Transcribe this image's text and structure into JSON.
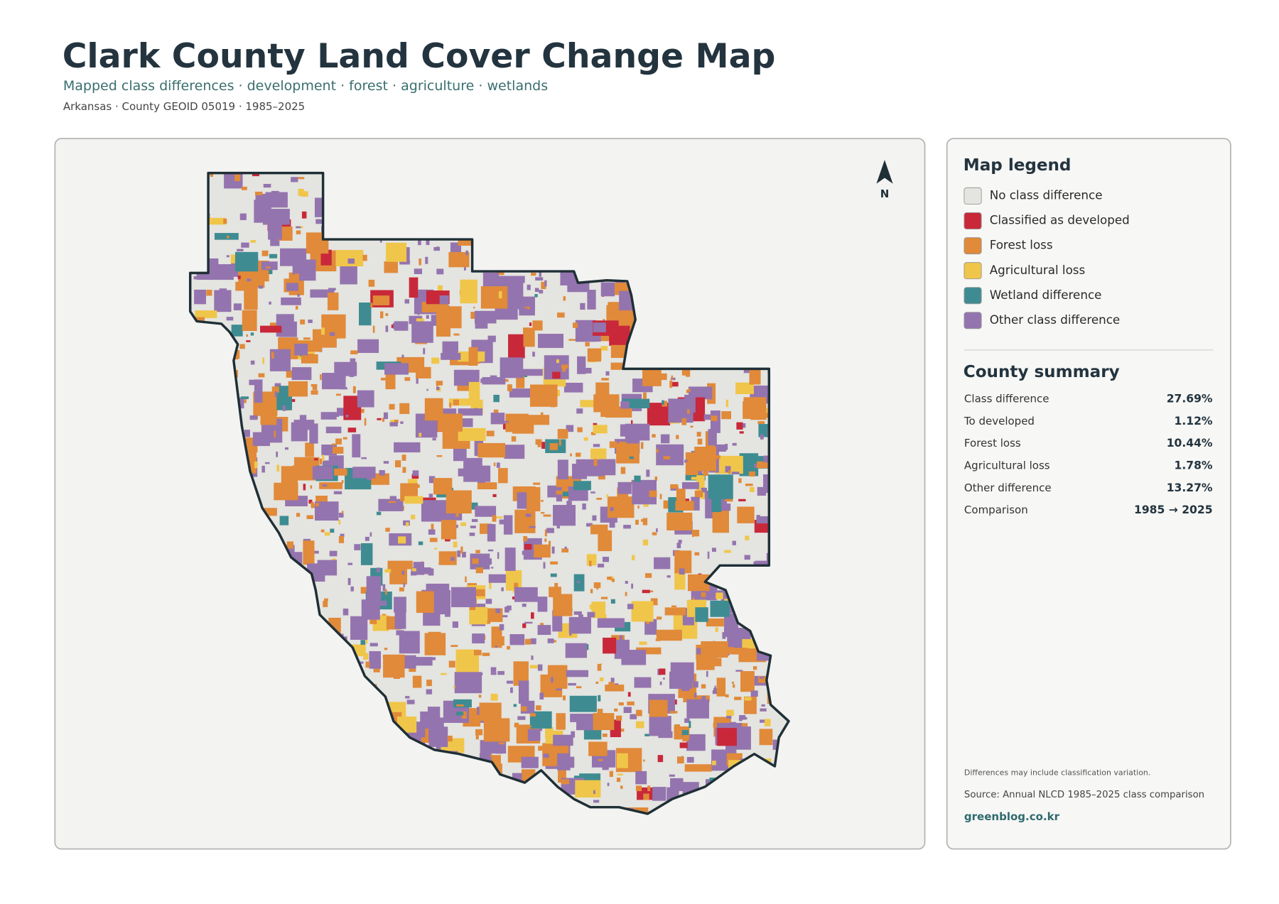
{
  "header": {
    "title": "Clark County Land Cover Change Map",
    "subtitle": "Mapped class differences · development · forest · agriculture · wetlands",
    "meta": "Arkansas · County GEOID 05019 · 1985–2025"
  },
  "map": {
    "north_label": "N"
  },
  "legend": {
    "title": "Map legend",
    "items": [
      {
        "label": "No class difference",
        "color": "#e4e4e0"
      },
      {
        "label": "Classified as developed",
        "color": "#c8283a"
      },
      {
        "label": "Forest loss",
        "color": "#e08a3a"
      },
      {
        "label": "Agricultural loss",
        "color": "#f0c64a"
      },
      {
        "label": "Wetland difference",
        "color": "#3e8c91"
      },
      {
        "label": "Other class difference",
        "color": "#9474ae"
      }
    ]
  },
  "summary": {
    "title": "County summary",
    "rows": [
      {
        "label": "Class difference",
        "value": "27.69%"
      },
      {
        "label": "To developed",
        "value": "1.12%"
      },
      {
        "label": "Forest loss",
        "value": "10.44%"
      },
      {
        "label": "Agricultural loss",
        "value": "1.78%"
      },
      {
        "label": "Other difference",
        "value": "13.27%"
      },
      {
        "label": "Comparison",
        "value": "1985 → 2025"
      }
    ]
  },
  "notes": {
    "caveat": "Differences may include classification variation.",
    "source": "Source: Annual NLCD 1985–2025 class comparison",
    "credit": "greenblog.co.kr"
  }
}
